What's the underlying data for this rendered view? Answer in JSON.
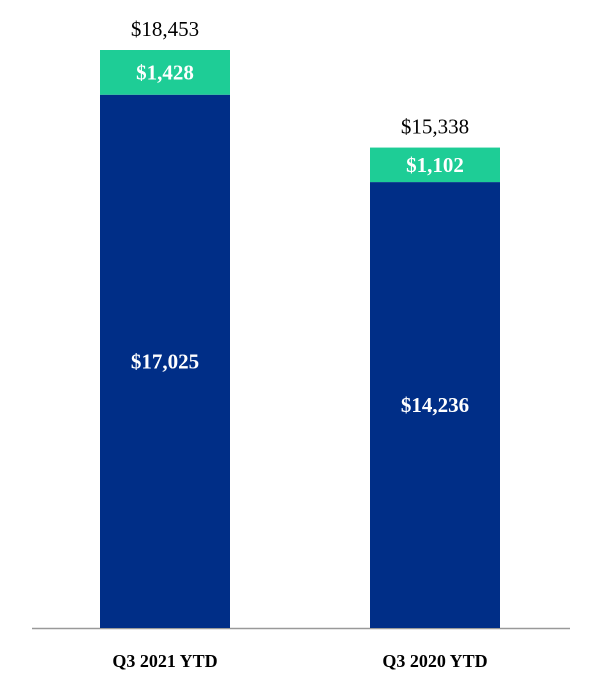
{
  "chart_data": {
    "type": "bar",
    "stacked": true,
    "title": "",
    "xlabel": "",
    "ylabel": "",
    "ylim": [
      0,
      18453
    ],
    "grid": false,
    "legend": "none",
    "categories": [
      "Q3 2021 YTD",
      "Q3 2020 YTD"
    ],
    "series": [
      {
        "values": [
          17025,
          14236
        ],
        "labels": [
          "$17,025",
          "$14,236"
        ],
        "color": "#002e87"
      },
      {
        "values": [
          1428,
          1102
        ],
        "labels": [
          "$1,428",
          "$1,102"
        ],
        "color": "#1ecd96"
      }
    ],
    "totals": [
      18453,
      15338
    ],
    "total_labels": [
      "$18,453",
      "$15,338"
    ],
    "axis_color": "#999999"
  }
}
